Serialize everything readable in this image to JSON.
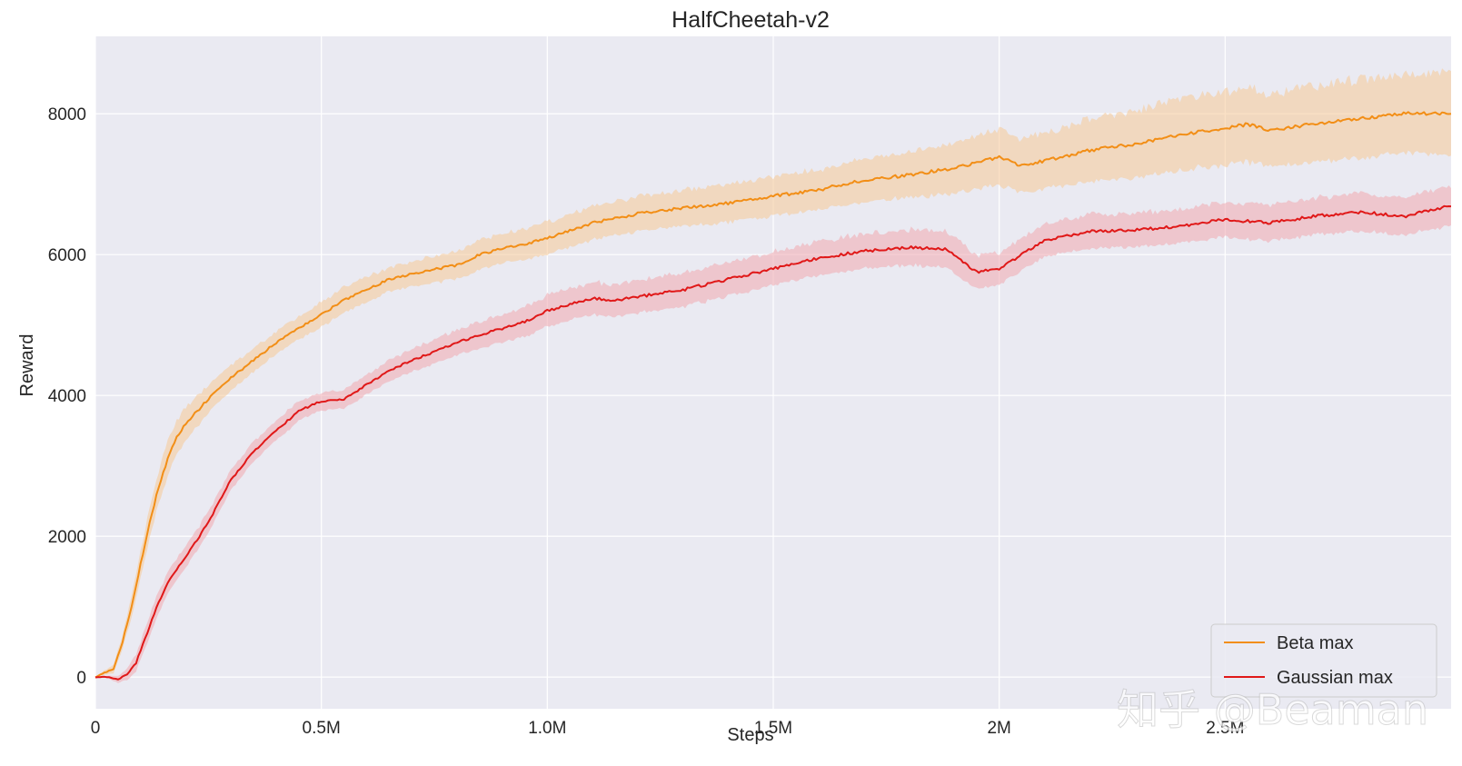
{
  "chart_data": {
    "type": "line",
    "title": "HalfCheetah-v2",
    "xlabel": "Steps",
    "ylabel": "Reward",
    "xlim": [
      0,
      3000000
    ],
    "ylim": [
      -450,
      9100
    ],
    "xticks": [
      0,
      500000,
      1000000,
      1500000,
      2000000,
      2500000
    ],
    "xtick_labels": [
      "0",
      "0.5M",
      "1.0M",
      "1.5M",
      "2M",
      "2.5M"
    ],
    "yticks": [
      0,
      2000,
      4000,
      6000,
      8000
    ],
    "ytick_labels": [
      "0",
      "2000",
      "4000",
      "6000",
      "8000"
    ],
    "grid": true,
    "legend_position": "lower-right",
    "series": [
      {
        "name": "Beta max",
        "color": "#f28e16",
        "band_color": "#f5c995",
        "x": [
          0,
          40000,
          60000,
          80000,
          100000,
          120000,
          140000,
          160000,
          180000,
          200000,
          250000,
          300000,
          350000,
          400000,
          450000,
          500000,
          550000,
          600000,
          650000,
          700000,
          750000,
          800000,
          850000,
          900000,
          950000,
          1000000,
          1100000,
          1200000,
          1300000,
          1400000,
          1500000,
          1600000,
          1700000,
          1800000,
          1900000,
          2000000,
          2050000,
          2100000,
          2150000,
          2200000,
          2300000,
          2400000,
          2500000,
          2550000,
          2600000,
          2700000,
          2800000,
          2900000,
          3000000
        ],
        "values": [
          0,
          120,
          500,
          1000,
          1600,
          2200,
          2700,
          3100,
          3400,
          3600,
          3950,
          4250,
          4500,
          4750,
          4950,
          5150,
          5350,
          5500,
          5650,
          5720,
          5790,
          5850,
          6000,
          6080,
          6150,
          6230,
          6450,
          6580,
          6660,
          6730,
          6830,
          6920,
          7060,
          7130,
          7230,
          7380,
          7260,
          7330,
          7400,
          7480,
          7570,
          7700,
          7800,
          7850,
          7760,
          7860,
          7930,
          8010,
          8000
        ],
        "band": [
          0,
          60,
          100,
          150,
          200,
          220,
          230,
          240,
          240,
          240,
          200,
          180,
          170,
          160,
          160,
          180,
          180,
          180,
          170,
          180,
          190,
          200,
          210,
          210,
          220,
          230,
          240,
          250,
          260,
          270,
          280,
          290,
          300,
          320,
          360,
          400,
          380,
          400,
          420,
          450,
          480,
          500,
          520,
          540,
          520,
          540,
          560,
          560,
          580
        ]
      },
      {
        "name": "Gaussian max",
        "color": "#e01818",
        "band_color": "#f0a8ae",
        "x": [
          0,
          30000,
          50000,
          70000,
          90000,
          110000,
          130000,
          150000,
          170000,
          200000,
          250000,
          300000,
          350000,
          400000,
          450000,
          500000,
          550000,
          600000,
          650000,
          700000,
          750000,
          800000,
          850000,
          900000,
          950000,
          1000000,
          1050000,
          1100000,
          1150000,
          1200000,
          1300000,
          1400000,
          1500000,
          1600000,
          1700000,
          1800000,
          1880000,
          1920000,
          1950000,
          2000000,
          2050000,
          2100000,
          2200000,
          2300000,
          2400000,
          2500000,
          2600000,
          2700000,
          2800000,
          2900000,
          3000000
        ],
        "values": [
          0,
          0,
          -30,
          30,
          200,
          550,
          900,
          1200,
          1450,
          1700,
          2200,
          2800,
          3200,
          3500,
          3780,
          3920,
          3950,
          4150,
          4350,
          4500,
          4620,
          4750,
          4860,
          4950,
          5050,
          5200,
          5300,
          5380,
          5350,
          5400,
          5500,
          5650,
          5800,
          5950,
          6050,
          6100,
          6080,
          5900,
          5750,
          5800,
          6000,
          6200,
          6330,
          6350,
          6400,
          6500,
          6450,
          6550,
          6600,
          6550,
          6700
        ],
        "band": [
          0,
          20,
          50,
          80,
          120,
          140,
          150,
          150,
          150,
          150,
          150,
          140,
          140,
          140,
          140,
          130,
          130,
          140,
          150,
          160,
          170,
          180,
          190,
          200,
          210,
          220,
          220,
          230,
          230,
          230,
          240,
          240,
          240,
          240,
          250,
          250,
          260,
          260,
          240,
          230,
          230,
          230,
          240,
          240,
          240,
          250,
          260,
          260,
          270,
          270,
          280
        ]
      }
    ]
  },
  "watermark": "知乎 @Beaman"
}
